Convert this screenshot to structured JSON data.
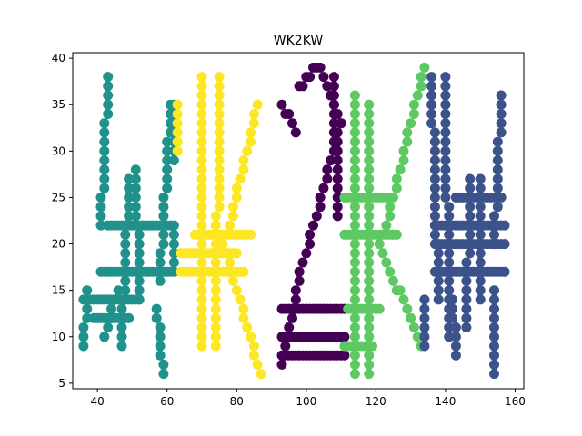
{
  "chart_data": {
    "type": "scatter",
    "title": "WK2KW",
    "xlabel": "",
    "ylabel": "",
    "xlim": [
      32.9,
      162.5
    ],
    "ylim": [
      4.4,
      40.6
    ],
    "xticks": [
      40,
      60,
      80,
      100,
      120,
      140,
      160
    ],
    "yticks": [
      5,
      10,
      15,
      20,
      25,
      30,
      35,
      40
    ],
    "grid": false,
    "legend": "none",
    "colors": [
      "#21918c",
      "#fde725",
      "#440154",
      "#5ec962",
      "#3b528b"
    ],
    "series": [
      {
        "color": "#21918c",
        "letter": "W",
        "strokes": [
          [
            [
              43,
              38
            ],
            [
              41,
              22
            ]
          ],
          [
            [
              37,
              15
            ],
            [
              36,
              9
            ]
          ],
          [
            [
              46,
              15
            ],
            [
              42,
              10
            ]
          ],
          [
            [
              49,
              27
            ],
            [
              47,
              9
            ]
          ],
          [
            [
              51,
              28
            ],
            [
              52,
              14
            ]
          ],
          [
            [
              61,
              35
            ],
            [
              58,
              16
            ]
          ],
          [
            [
              57,
              13
            ],
            [
              59,
              6
            ]
          ],
          [
            [
              43,
              22
            ],
            [
              61,
              22
            ]
          ],
          [
            [
              41,
              17
            ],
            [
              61,
              17
            ]
          ],
          [
            [
              36,
              14
            ],
            [
              52,
              14
            ]
          ],
          [
            [
              39,
              12
            ],
            [
              49,
              12
            ]
          ],
          [
            [
              62,
              35
            ],
            [
              62,
              29
            ]
          ],
          [
            [
              62,
              22
            ],
            [
              62,
              17
            ]
          ]
        ]
      },
      {
        "color": "#fde725",
        "letter": "K",
        "strokes": [
          [
            [
              70,
              38
            ],
            [
              70,
              9
            ]
          ],
          [
            [
              75,
              38
            ],
            [
              74,
              9
            ]
          ],
          [
            [
              86,
              35
            ],
            [
              78,
              22
            ]
          ],
          [
            [
              76,
              20
            ],
            [
              87,
              6
            ]
          ],
          [
            [
              68,
              21
            ],
            [
              84,
              21
            ]
          ],
          [
            [
              64,
              19
            ],
            [
              80,
              19
            ]
          ],
          [
            [
              64,
              17
            ],
            [
              82,
              17
            ]
          ],
          [
            [
              63,
              35
            ],
            [
              63,
              30
            ]
          ]
        ]
      },
      {
        "color": "#440154",
        "letter": "2",
        "strokes": [
          [
            [
              104,
              39
            ],
            [
              110,
              33
            ]
          ],
          [
            [
              98,
              37
            ],
            [
              103,
              39
            ]
          ],
          [
            [
              93,
              35
            ],
            [
              97,
              32
            ]
          ],
          [
            [
              110,
              33
            ],
            [
              97,
              15
            ]
          ],
          [
            [
              97,
              14
            ],
            [
              93,
              7
            ]
          ],
          [
            [
              93,
              13
            ],
            [
              111,
              13
            ]
          ],
          [
            [
              93,
              10
            ],
            [
              111,
              10
            ]
          ],
          [
            [
              93,
              8
            ],
            [
              111,
              8
            ]
          ],
          [
            [
              108,
              38
            ],
            [
              109,
              23
            ]
          ]
        ]
      },
      {
        "color": "#5ec962",
        "letter": "K",
        "strokes": [
          [
            [
              114,
              36
            ],
            [
              114,
              6
            ]
          ],
          [
            [
              118,
              35
            ],
            [
              118,
              6
            ]
          ],
          [
            [
              134,
              39
            ],
            [
              123,
              22
            ]
          ],
          [
            [
              121,
              20
            ],
            [
              133,
              9
            ]
          ],
          [
            [
              111,
              21
            ],
            [
              126,
              21
            ]
          ],
          [
            [
              111,
              25
            ],
            [
              124,
              25
            ]
          ],
          [
            [
              112,
              13
            ],
            [
              121,
              13
            ]
          ],
          [
            [
              111,
              9
            ],
            [
              119,
              9
            ]
          ]
        ]
      },
      {
        "color": "#3b528b",
        "letter": "W",
        "strokes": [
          [
            [
              136,
              38
            ],
            [
              138,
              14
            ]
          ],
          [
            [
              140,
              38
            ],
            [
              141,
              10
            ]
          ],
          [
            [
              142,
              14
            ],
            [
              143,
              8
            ]
          ],
          [
            [
              147,
              27
            ],
            [
              146,
              11
            ]
          ],
          [
            [
              150,
              27
            ],
            [
              150,
              14
            ]
          ],
          [
            [
              156,
              36
            ],
            [
              154,
              20
            ]
          ],
          [
            [
              154,
              15
            ],
            [
              154,
              6
            ]
          ],
          [
            [
              137,
              22
            ],
            [
              157,
              22
            ]
          ],
          [
            [
              137,
              20
            ],
            [
              157,
              20
            ]
          ],
          [
            [
              137,
              17
            ],
            [
              157,
              17
            ]
          ],
          [
            [
              143,
              25
            ],
            [
              156,
              25
            ]
          ],
          [
            [
              134,
              14
            ],
            [
              134,
              9
            ]
          ]
        ]
      }
    ]
  }
}
